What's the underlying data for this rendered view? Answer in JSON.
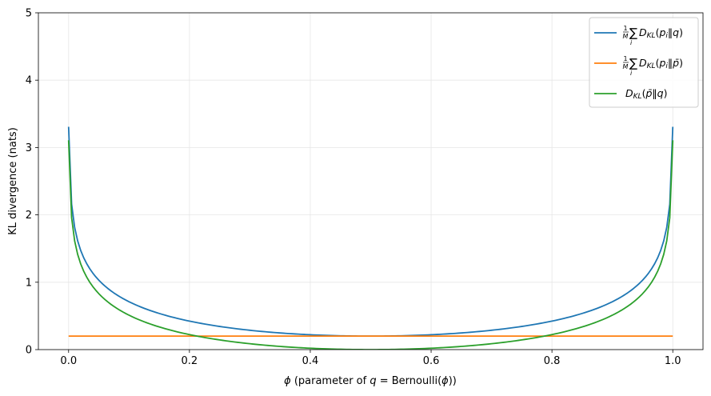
{
  "chart_data": {
    "type": "line",
    "xlabel_parts": {
      "phi": "ϕ",
      "text": " (parameter of ",
      "q": "q",
      "eq": " = Bernoulli(",
      "phi2": "ϕ",
      "close": "))"
    },
    "ylabel": "KL divergence (nats)",
    "xlim": [
      -0.05,
      1.05
    ],
    "ylim": [
      0,
      5
    ],
    "xticks": [
      "0.0",
      "0.2",
      "0.4",
      "0.6",
      "0.8",
      "1.0"
    ],
    "xtick_values": [
      0.0,
      0.2,
      0.4,
      0.6,
      0.8,
      1.0
    ],
    "yticks": [
      "0",
      "1",
      "2",
      "3",
      "4",
      "5"
    ],
    "ytick_values": [
      0,
      1,
      2,
      3,
      4,
      5
    ],
    "grid": true,
    "legend_position": "top-right",
    "pbar": 0.5,
    "constant_gap": 0.2,
    "series": [
      {
        "name": "1/M Σ_i D_KL(p_i‖q)",
        "color": "#1f77b4",
        "kind": "avg_to_q"
      },
      {
        "name": "1/M Σ_i D_KL(p_i‖p̄)",
        "color": "#ff7f0e",
        "kind": "constant"
      },
      {
        "name": "D_KL(p̄‖q)",
        "color": "#2ca02c",
        "kind": "pbar_to_q"
      }
    ]
  }
}
